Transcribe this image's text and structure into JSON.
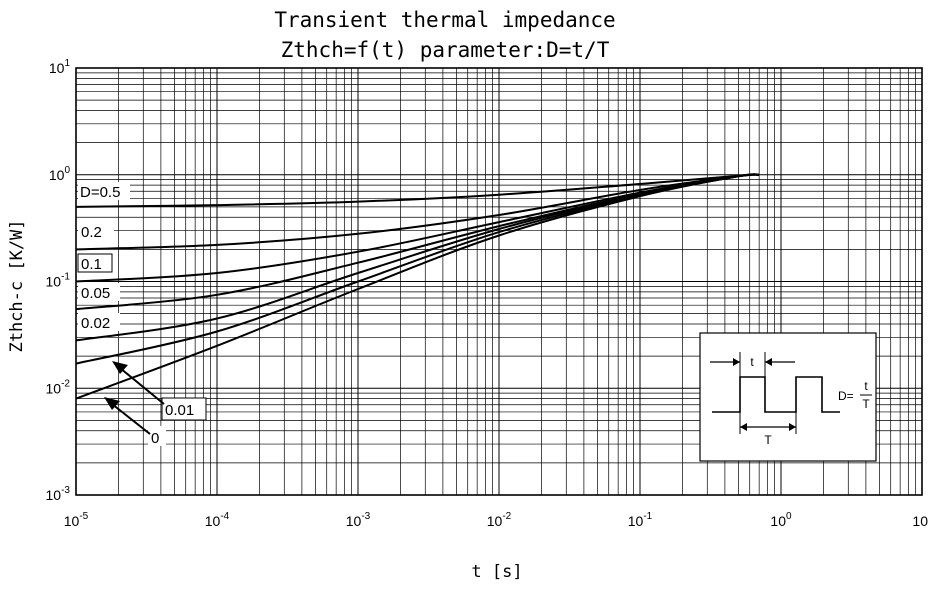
{
  "chart_data": {
    "type": "line",
    "title": "Transient thermal impedance",
    "subtitle": "Zthch=f(t) parameter:D=t/T",
    "xlabel": "t [s]",
    "ylabel": "Zthch-c [K/W]",
    "x_scale": "log",
    "y_scale": "log",
    "xlim": [
      1e-05,
      10
    ],
    "ylim": [
      0.001,
      10
    ],
    "grid": true,
    "x_ticks": [
      {
        "base": "10",
        "exp": "-5",
        "value": 1e-05
      },
      {
        "base": "10",
        "exp": "-4",
        "value": 0.0001
      },
      {
        "base": "10",
        "exp": "-3",
        "value": 0.001
      },
      {
        "base": "10",
        "exp": "-2",
        "value": 0.01
      },
      {
        "base": "10",
        "exp": "-1",
        "value": 0.1
      },
      {
        "base": "10",
        "exp": "0",
        "value": 1
      },
      {
        "base": "10",
        "exp": "",
        "value": 10
      }
    ],
    "y_ticks": [
      {
        "base": "10",
        "exp": "1",
        "value": 10
      },
      {
        "base": "10",
        "exp": "0",
        "value": 1
      },
      {
        "base": "10",
        "exp": "-1",
        "value": 0.1
      },
      {
        "base": "10",
        "exp": "-2",
        "value": 0.01
      },
      {
        "base": "10",
        "exp": "-3",
        "value": 0.001
      }
    ],
    "series": [
      {
        "name": "D=0.5",
        "x": [
          1e-05,
          0.0001,
          0.001,
          0.01,
          0.1,
          0.5,
          0.7
        ],
        "y": [
          0.5,
          0.52,
          0.56,
          0.65,
          0.82,
          0.98,
          1.0
        ]
      },
      {
        "name": "0.2",
        "x": [
          1e-05,
          0.0001,
          0.001,
          0.01,
          0.1,
          0.5,
          0.7
        ],
        "y": [
          0.2,
          0.22,
          0.28,
          0.42,
          0.72,
          0.97,
          1.0
        ]
      },
      {
        "name": "0.1",
        "x": [
          1e-05,
          0.0001,
          0.001,
          0.01,
          0.1,
          0.5,
          0.7
        ],
        "y": [
          0.1,
          0.12,
          0.19,
          0.36,
          0.68,
          0.97,
          1.0
        ]
      },
      {
        "name": "0.05",
        "x": [
          1e-05,
          0.0001,
          0.001,
          0.01,
          0.1,
          0.5,
          0.7
        ],
        "y": [
          0.055,
          0.075,
          0.15,
          0.33,
          0.66,
          0.97,
          1.0
        ]
      },
      {
        "name": "0.02",
        "x": [
          1e-05,
          0.0001,
          0.001,
          0.01,
          0.1,
          0.5,
          0.7
        ],
        "y": [
          0.028,
          0.045,
          0.12,
          0.31,
          0.65,
          0.97,
          1.0
        ]
      },
      {
        "name": "0.01",
        "x": [
          1e-05,
          0.0001,
          0.001,
          0.01,
          0.1,
          0.5,
          0.7
        ],
        "y": [
          0.017,
          0.034,
          0.1,
          0.29,
          0.64,
          0.97,
          1.0
        ]
      },
      {
        "name": "0",
        "x": [
          1e-05,
          0.0001,
          0.001,
          0.01,
          0.1,
          0.5,
          0.7
        ],
        "y": [
          0.008,
          0.025,
          0.085,
          0.27,
          0.63,
          0.97,
          1.0
        ]
      }
    ],
    "inset": {
      "pulse_width_label": "t",
      "period_label": "T",
      "duty_prefix": "D=",
      "duty_numerator": "t",
      "duty_denominator": "T"
    }
  }
}
